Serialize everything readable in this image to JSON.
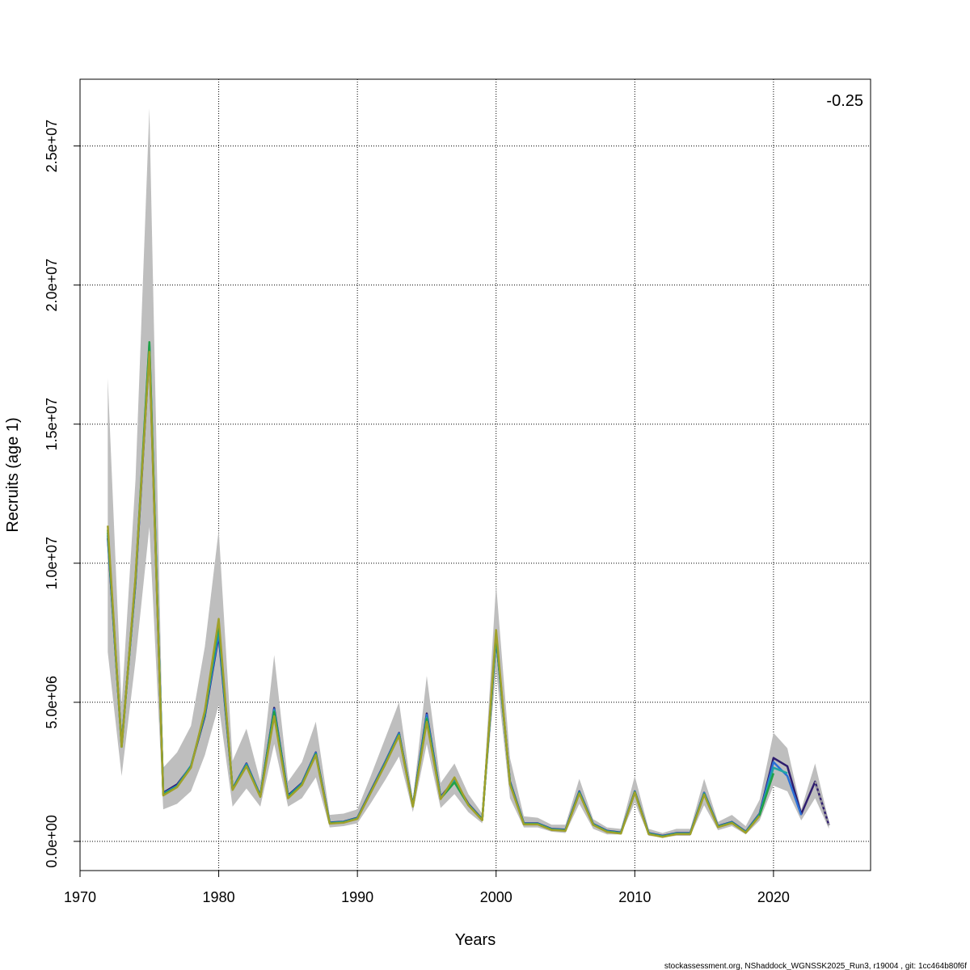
{
  "chart_data": {
    "type": "line",
    "title": "",
    "xlabel": "Years",
    "ylabel": "Recruits (age 1)",
    "corner_label": "-0.25",
    "footer": "stockassessment.org, NShaddock_WGNSSK2025_Run3, r19004 , git: 1cc464b80f6f",
    "xlim": [
      1970,
      2027
    ],
    "ylim": [
      -1050000,
      27400000
    ],
    "x_ticks": [
      1970,
      1980,
      1990,
      2000,
      2010,
      2020
    ],
    "x_tick_labels": [
      "1970",
      "1980",
      "1990",
      "2000",
      "2010",
      "2020"
    ],
    "y_ticks": [
      0,
      5000000,
      10000000,
      15000000,
      20000000,
      25000000
    ],
    "y_tick_labels": [
      "0.0e+00",
      "5.0e+06",
      "1.0e+07",
      "1.5e+07",
      "2.0e+07",
      "2.5e+07"
    ],
    "grid": true,
    "confidence_band": {
      "color": "#bebebe",
      "x": [
        1972,
        1973,
        1974,
        1975,
        1976,
        1977,
        1978,
        1979,
        1980,
        1981,
        1982,
        1983,
        1984,
        1985,
        1986,
        1987,
        1988,
        1989,
        1990,
        1991,
        1992,
        1993,
        1994,
        1995,
        1996,
        1997,
        1998,
        1999,
        2000,
        2001,
        2002,
        2003,
        2004,
        2005,
        2006,
        2007,
        2008,
        2009,
        2010,
        2011,
        2012,
        2013,
        2014,
        2015,
        2016,
        2017,
        2018,
        2019,
        2020,
        2021,
        2022,
        2023,
        2024
      ],
      "upper": [
        16650000,
        4900000,
        13000000,
        26350000,
        2650000,
        3200000,
        4150000,
        7000000,
        11200000,
        2900000,
        4050000,
        2150000,
        6700000,
        2150000,
        2850000,
        4300000,
        950000,
        1000000,
        1150000,
        2400000,
        3700000,
        5000000,
        1500000,
        5950000,
        2100000,
        2800000,
        1700000,
        1000000,
        9250000,
        3000000,
        900000,
        850000,
        600000,
        600000,
        2250000,
        800000,
        500000,
        450000,
        2350000,
        450000,
        300000,
        450000,
        450000,
        2250000,
        700000,
        950000,
        550000,
        1500000,
        3900000,
        3350000,
        1150000,
        2800000,
        700000
      ],
      "lower": [
        6800000,
        2350000,
        6500000,
        11300000,
        1150000,
        1350000,
        1800000,
        3100000,
        4900000,
        1250000,
        1900000,
        1250000,
        3500000,
        1250000,
        1550000,
        2300000,
        500000,
        550000,
        650000,
        1400000,
        2200000,
        3050000,
        1050000,
        3500000,
        1200000,
        1700000,
        1050000,
        650000,
        6150000,
        1550000,
        500000,
        500000,
        350000,
        300000,
        1350000,
        450000,
        250000,
        250000,
        1400000,
        200000,
        150000,
        200000,
        200000,
        1300000,
        400000,
        550000,
        250000,
        750000,
        2000000,
        1800000,
        750000,
        1550000,
        450000
      ]
    },
    "series": [
      {
        "color": "#2e1c6e",
        "x": [
          1972,
          1973,
          1974,
          1975,
          1976,
          1977,
          1978,
          1979,
          1980,
          1981,
          1982,
          1983,
          1984,
          1985,
          1986,
          1987,
          1988,
          1989,
          1990,
          1991,
          1992,
          1993,
          1994,
          1995,
          1996,
          1997,
          1998,
          1999,
          2000,
          2001,
          2002,
          2003,
          2004,
          2005,
          2006,
          2007,
          2008,
          2009,
          2010,
          2011,
          2012,
          2013,
          2014,
          2015,
          2016,
          2017,
          2018,
          2019,
          2020,
          2021,
          2022,
          2023,
          2024
        ],
        "values": [
          10900000,
          3500000,
          9300000,
          17700000,
          1750000,
          2050000,
          2700000,
          4500000,
          7400000,
          1900000,
          2800000,
          1650000,
          4800000,
          1650000,
          2100000,
          3200000,
          680000,
          710000,
          850000,
          1850000,
          2850000,
          3900000,
          1300000,
          4600000,
          1600000,
          2200000,
          1350000,
          800000,
          7300000,
          2150000,
          650000,
          650000,
          450000,
          420000,
          1800000,
          630000,
          380000,
          320000,
          1800000,
          300000,
          200000,
          300000,
          300000,
          1750000,
          550000,
          700000,
          350000,
          1000000,
          3000000,
          2700000,
          980000,
          2150000,
          580000
        ]
      },
      {
        "color": "#2a6fd6",
        "x": [
          1972,
          1973,
          1974,
          1975,
          1976,
          1977,
          1978,
          1979,
          1980,
          1981,
          1982,
          1983,
          1984,
          1985,
          1986,
          1987,
          1988,
          1989,
          1990,
          1991,
          1992,
          1993,
          1994,
          1995,
          1996,
          1997,
          1998,
          1999,
          2000,
          2001,
          2002,
          2003,
          2004,
          2005,
          2006,
          2007,
          2008,
          2009,
          2010,
          2011,
          2012,
          2013,
          2014,
          2015,
          2016,
          2017,
          2018,
          2019,
          2020,
          2021,
          2022
        ],
        "values": [
          11000000,
          3450000,
          9350000,
          17800000,
          1720000,
          2000000,
          2720000,
          4550000,
          7500000,
          1900000,
          2780000,
          1650000,
          4750000,
          1620000,
          2080000,
          3180000,
          670000,
          700000,
          840000,
          1830000,
          2830000,
          3880000,
          1280000,
          4550000,
          1580000,
          2180000,
          1330000,
          790000,
          7350000,
          2120000,
          640000,
          640000,
          440000,
          410000,
          1780000,
          620000,
          370000,
          310000,
          1790000,
          290000,
          190000,
          290000,
          290000,
          1740000,
          540000,
          690000,
          340000,
          980000,
          2850000,
          2350000,
          950000
        ]
      },
      {
        "color": "#22a5a5",
        "x": [
          1972,
          1973,
          1974,
          1975,
          1976,
          1977,
          1978,
          1979,
          1980,
          1981,
          1982,
          1983,
          1984,
          1985,
          1986,
          1987,
          1988,
          1989,
          1990,
          1991,
          1992,
          1993,
          1994,
          1995,
          1996,
          1997,
          1998,
          1999,
          2000,
          2001,
          2002,
          2003,
          2004,
          2005,
          2006,
          2007,
          2008,
          2009,
          2010,
          2011,
          2012,
          2013,
          2014,
          2015,
          2016,
          2017,
          2018,
          2019,
          2020,
          2021
        ],
        "values": [
          11100000,
          3450000,
          9400000,
          17900000,
          1700000,
          1980000,
          2700000,
          4600000,
          7700000,
          1880000,
          2750000,
          1630000,
          4700000,
          1600000,
          2060000,
          3150000,
          660000,
          690000,
          830000,
          1810000,
          2800000,
          3850000,
          1270000,
          4450000,
          1560000,
          2150000,
          1320000,
          780000,
          7400000,
          2100000,
          630000,
          630000,
          430000,
          400000,
          1760000,
          610000,
          360000,
          300000,
          1780000,
          280000,
          180000,
          280000,
          280000,
          1720000,
          530000,
          680000,
          330000,
          960000,
          2650000,
          2450000
        ]
      },
      {
        "color": "#21a046",
        "x": [
          1972,
          1973,
          1974,
          1975,
          1976,
          1977,
          1978,
          1979,
          1980,
          1981,
          1982,
          1983,
          1984,
          1985,
          1986,
          1987,
          1988,
          1989,
          1990,
          1991,
          1992,
          1993,
          1994,
          1995,
          1996,
          1997,
          1998,
          1999,
          2000,
          2001,
          2002,
          2003,
          2004,
          2005,
          2006,
          2007,
          2008,
          2009,
          2010,
          2011,
          2012,
          2013,
          2014,
          2015,
          2016,
          2017,
          2018,
          2019,
          2020
        ],
        "values": [
          11200000,
          3400000,
          9450000,
          17950000,
          1680000,
          1960000,
          2680000,
          4650000,
          7850000,
          1870000,
          2720000,
          1620000,
          4650000,
          1580000,
          2040000,
          3130000,
          650000,
          680000,
          820000,
          1800000,
          2780000,
          3820000,
          1260000,
          4400000,
          1540000,
          2120000,
          1310000,
          770000,
          7450000,
          2080000,
          620000,
          620000,
          420000,
          390000,
          1740000,
          600000,
          350000,
          290000,
          1770000,
          270000,
          170000,
          270000,
          270000,
          1700000,
          520000,
          670000,
          320000,
          940000,
          2450000
        ]
      },
      {
        "color": "#a0a02a",
        "x": [
          1972,
          1973,
          1974,
          1975,
          1976,
          1977,
          1978,
          1979,
          1980,
          1981,
          1982,
          1983,
          1984,
          1985,
          1986,
          1987,
          1988,
          1989,
          1990,
          1991,
          1992,
          1993,
          1994,
          1995,
          1996,
          1997,
          1998,
          1999,
          2000,
          2001,
          2002,
          2003,
          2004,
          2005,
          2006,
          2007,
          2008,
          2009,
          2010,
          2011,
          2012,
          2013,
          2014,
          2015,
          2016,
          2017,
          2018,
          2019
        ],
        "values": [
          11350000,
          3400000,
          9500000,
          17600000,
          1650000,
          1950000,
          2650000,
          4700000,
          8000000,
          1850000,
          2700000,
          1600000,
          4500000,
          1550000,
          2020000,
          3100000,
          640000,
          670000,
          810000,
          1790000,
          2760000,
          3800000,
          1250000,
          4300000,
          1520000,
          2300000,
          1300000,
          760000,
          7600000,
          2050000,
          610000,
          610000,
          410000,
          380000,
          1720000,
          590000,
          340000,
          280000,
          1760000,
          260000,
          160000,
          260000,
          260000,
          1680000,
          510000,
          660000,
          310000,
          920000
        ]
      }
    ],
    "last_point_dashed": {
      "color": "#9a9a9a",
      "x": [
        2023,
        2024
      ],
      "values": [
        2150000,
        580000
      ]
    }
  }
}
